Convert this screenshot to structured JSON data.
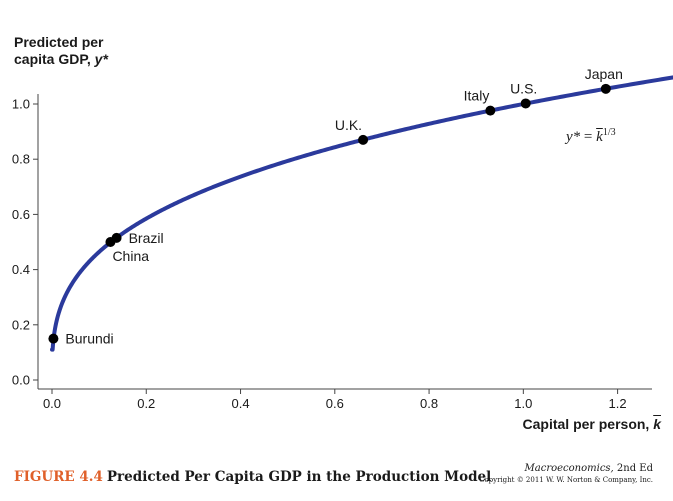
{
  "chart_data": {
    "type": "line",
    "ylabel": [
      "Predicted per",
      "capita GDP, "
    ],
    "ylabel_symbol": "y*",
    "xlabel": "Capital per person, ",
    "xlabel_symbol": "k",
    "xlim": [
      -0.02,
      1.35
    ],
    "ylim": [
      -0.02,
      1.15
    ],
    "xticks": [
      0.0,
      0.2,
      0.4,
      0.6,
      0.8,
      1.0,
      1.2
    ],
    "xtick_labels": [
      "0.0",
      "0.2",
      "0.4",
      "0.6",
      "0.8",
      "1.0",
      "1.2"
    ],
    "yticks": [
      0.0,
      0.2,
      0.4,
      0.6,
      0.8,
      1.0
    ],
    "ytick_labels": [
      "0.0",
      "0.2",
      "0.4",
      "0.6",
      "0.8",
      "1.0"
    ],
    "curve": {
      "function": "y = k^(1/3)",
      "k_range": [
        0.0,
        1.34
      ],
      "color": "#2b3a9c"
    },
    "equation": {
      "lhs": "y*",
      "equals": " = ",
      "rhs_base": "k",
      "exponent": "1/3"
    },
    "points": [
      {
        "label": "Burundi",
        "k": 0.003,
        "y": 0.15,
        "label_pos": "right"
      },
      {
        "label": "China",
        "k": 0.124,
        "y": 0.5,
        "label_pos": "below-right"
      },
      {
        "label": "Brazil",
        "k": 0.137,
        "y": 0.515,
        "label_pos": "right"
      },
      {
        "label": "U.K.",
        "k": 0.66,
        "y": 0.87,
        "label_pos": "above-left"
      },
      {
        "label": "Italy",
        "k": 0.93,
        "y": 0.976,
        "label_pos": "above-left"
      },
      {
        "label": "U.S.",
        "k": 1.005,
        "y": 1.002,
        "label_pos": "above"
      },
      {
        "label": "Japan",
        "k": 1.175,
        "y": 1.055,
        "label_pos": "above"
      }
    ],
    "point_color": "#000000",
    "grid": false,
    "legend": "none"
  },
  "caption": {
    "figure_number": "FIGURE 4.4",
    "title": "Predicted Per Capita GDP in the Production Model"
  },
  "credit": {
    "book_title": "Macroeconomics,",
    "edition": " 2nd Ed",
    "copyright": "Copyright © 2011 W. W. Norton & Company, Inc."
  }
}
